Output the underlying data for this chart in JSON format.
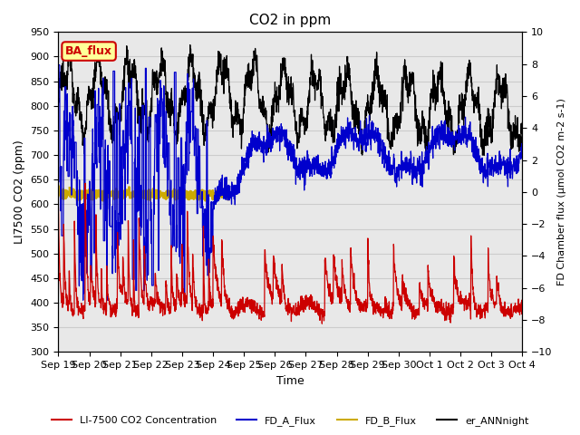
{
  "title": "CO2 in ppm",
  "ylabel_left": "LI7500 CO2 (ppm)",
  "ylabel_right": "FD Chamber flux (μmol CO2 m-2 s-1)",
  "xlabel": "Time",
  "ylim_left": [
    300,
    950
  ],
  "ylim_right": [
    -10,
    10
  ],
  "yticks_left": [
    300,
    350,
    400,
    450,
    500,
    550,
    600,
    650,
    700,
    750,
    800,
    850,
    900,
    950
  ],
  "yticks_right": [
    -10,
    -8,
    -6,
    -4,
    -2,
    0,
    2,
    4,
    6,
    8,
    10
  ],
  "legend_entries": [
    "LI-7500 CO2 Concentration",
    "FD_A_Flux",
    "FD_B_Flux",
    "er_ANNnight"
  ],
  "legend_colors": [
    "#cc0000",
    "#0000cc",
    "#ccaa00",
    "#000000"
  ],
  "ba_flux_box_color": "#ffff99",
  "ba_flux_text_color": "#cc0000",
  "ba_flux_border_color": "#cc0000",
  "grid_color": "#cccccc",
  "background_color": "#e8e8e8",
  "color_red": "#cc0000",
  "color_blue": "#0000cc",
  "color_gold": "#ccaa00",
  "color_black": "#000000",
  "xtick_labels": [
    "Sep 19",
    "Sep 20",
    "Sep 21",
    "Sep 22",
    "Sep 23",
    "Sep 24",
    "Sep 25",
    "Sep 26",
    "Sep 27",
    "Sep 28",
    "Sep 29",
    "Sep 30",
    "Oct 1",
    "Oct 2",
    "Oct 3",
    "Oct 4"
  ]
}
